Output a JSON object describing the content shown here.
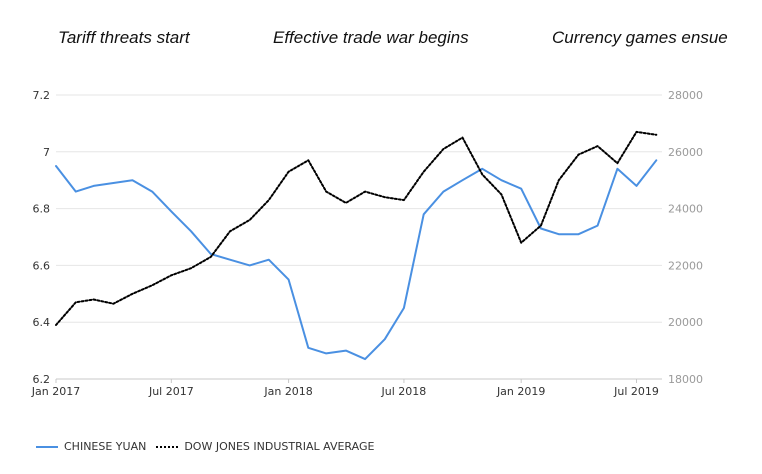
{
  "annotations": [
    "Tariff threats start",
    "Effective trade war begins",
    "Currency games ensue"
  ],
  "chart_data": {
    "type": "line",
    "x": [
      "2017-01-01",
      "2017-02-01",
      "2017-03-01",
      "2017-04-01",
      "2017-05-01",
      "2017-06-01",
      "2017-07-01",
      "2017-08-01",
      "2017-09-01",
      "2017-10-01",
      "2017-11-01",
      "2017-12-01",
      "2018-01-01",
      "2018-02-01",
      "2018-03-01",
      "2018-04-01",
      "2018-05-01",
      "2018-06-01",
      "2018-07-01",
      "2018-08-01",
      "2018-09-01",
      "2018-10-01",
      "2018-11-01",
      "2018-12-01",
      "2019-01-01",
      "2019-02-01",
      "2019-03-01",
      "2019-04-01",
      "2019-05-01",
      "2019-06-01",
      "2019-07-01",
      "2019-08-01"
    ],
    "series": [
      {
        "name": "CHINESE YUAN",
        "axis": "left",
        "color": "#4a90e2",
        "style": "solid",
        "values": [
          6.95,
          6.86,
          6.88,
          6.89,
          6.9,
          6.86,
          6.79,
          6.72,
          6.64,
          6.62,
          6.6,
          6.62,
          6.55,
          6.31,
          6.29,
          6.3,
          6.27,
          6.34,
          6.45,
          6.78,
          6.86,
          6.9,
          6.94,
          6.9,
          6.87,
          6.73,
          6.71,
          6.71,
          6.74,
          6.94,
          6.88,
          6.97
        ]
      },
      {
        "name": "DOW JONES INDUSTRIAL AVERAGE",
        "axis": "right",
        "color": "#000000",
        "style": "dotted",
        "values": [
          19900,
          20700,
          20800,
          20650,
          21000,
          21300,
          21650,
          21900,
          22300,
          23200,
          23600,
          24300,
          25300,
          25700,
          24600,
          24200,
          24600,
          24400,
          24300,
          25300,
          26100,
          26500,
          25200,
          24500,
          22800,
          23400,
          25000,
          25900,
          26200,
          25600,
          26700,
          26600
        ]
      }
    ],
    "x_ticks": [
      "Jan 2017",
      "Jul 2017",
      "Jan 2018",
      "Jul 2018",
      "Jan 2019",
      "Jul 2019"
    ],
    "y_left_ticks": [
      "6.2",
      "6.4",
      "6.6",
      "6.8",
      "7",
      "7.2"
    ],
    "y_right_ticks": [
      "18000",
      "20000",
      "22000",
      "24000",
      "26000",
      "28000"
    ],
    "ylim_left": [
      6.2,
      7.2
    ],
    "ylim_right": [
      18000,
      28000
    ],
    "grid": true,
    "legend_position": "bottom"
  },
  "legend": [
    "CHINESE YUAN",
    "DOW JONES INDUSTRIAL AVERAGE"
  ]
}
